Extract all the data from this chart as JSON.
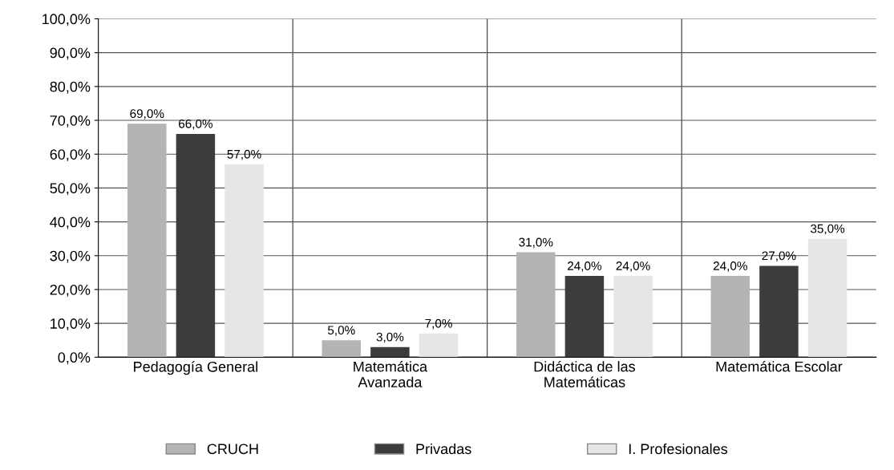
{
  "chart_data": {
    "type": "bar",
    "categories": [
      "Pedagogía General",
      "Matemática\nAvanzada",
      "Didáctica de las\nMatemáticas",
      "Matemática Escolar"
    ],
    "series": [
      {
        "name": "CRUCH",
        "color": "#b4b4b4",
        "values": [
          69,
          5,
          31,
          24
        ],
        "value_labels": [
          "69,0%",
          "5,0%",
          "31,0%",
          "24,0%"
        ]
      },
      {
        "name": "Privadas",
        "color": "#3c3c3c",
        "values": [
          66,
          3,
          24,
          27
        ],
        "value_labels": [
          "66,0%",
          "3,0%",
          "24,0%",
          "27,0%"
        ]
      },
      {
        "name": "I. Profesionales",
        "color": "#e6e6e6",
        "values": [
          57,
          7,
          24,
          35
        ],
        "value_labels": [
          "57,0%",
          "7,0%",
          "24,0%",
          "35,0%"
        ]
      }
    ],
    "ylim": [
      0,
      100
    ],
    "yticks": [
      {
        "value": 0,
        "label": "0,0%"
      },
      {
        "value": 10,
        "label": "10,0%"
      },
      {
        "value": 20,
        "label": "20,0%"
      },
      {
        "value": 30,
        "label": "30,0%"
      },
      {
        "value": 40,
        "label": "40,0%"
      },
      {
        "value": 50,
        "label": "50,0%"
      },
      {
        "value": 60,
        "label": "60,0%"
      },
      {
        "value": 70,
        "label": "70,0%"
      },
      {
        "value": 80,
        "label": "80,0%"
      },
      {
        "value": 90,
        "label": "90,0%"
      },
      {
        "value": 100,
        "label": "100,0%"
      }
    ],
    "grid": true,
    "legend": "bottom"
  }
}
